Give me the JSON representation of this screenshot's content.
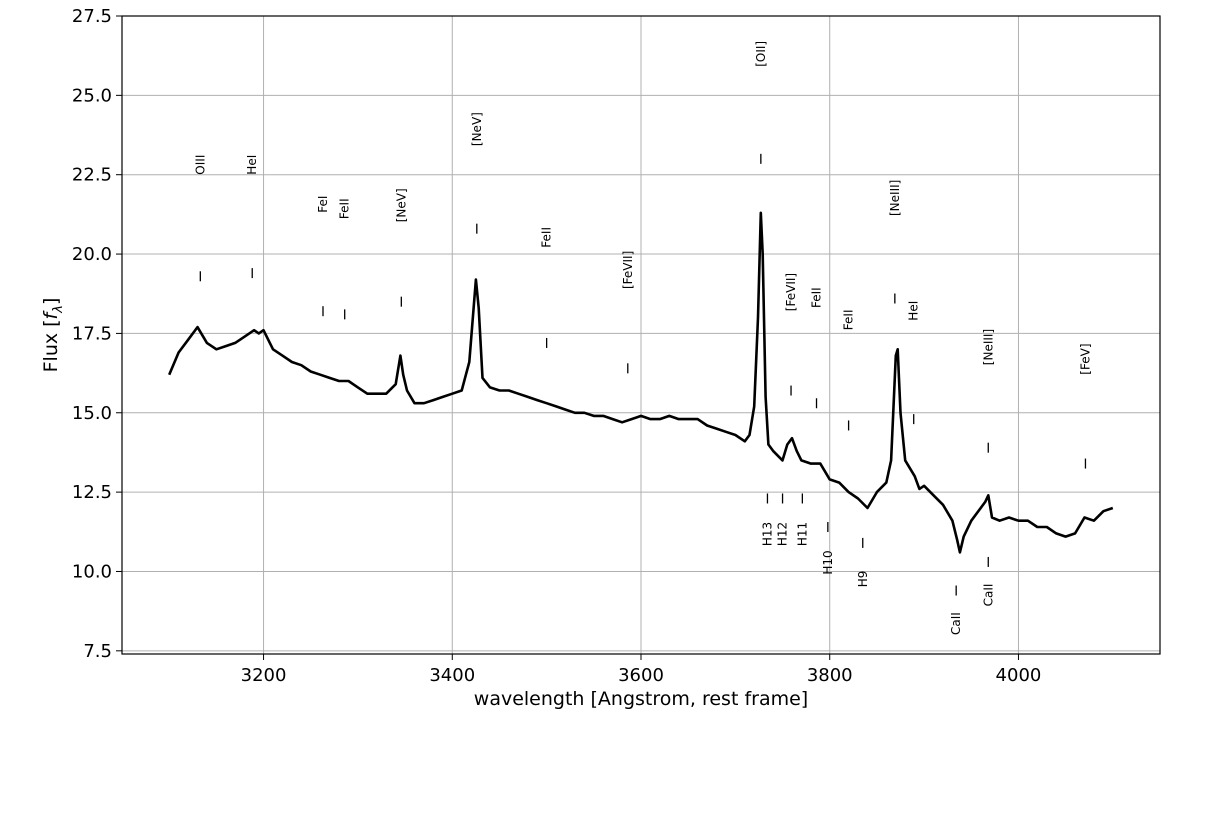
{
  "chart_data": {
    "type": "line",
    "xlabel": "wavelength [Angstrom, rest frame]",
    "ylabel": "Flux [",
    "ylabel_symbol": "f",
    "ylabel_sub": "λ",
    "ylabel_close": "]",
    "xlim": [
      3050,
      4150
    ],
    "ylim": [
      7.4,
      27.5
    ],
    "grid": true,
    "x_ticks": [
      3200,
      3400,
      3600,
      3800,
      4000
    ],
    "x_tick_labels": [
      "3200",
      "3400",
      "3600",
      "3800",
      "4000"
    ],
    "y_ticks": [
      7.5,
      10.0,
      12.5,
      15.0,
      17.5,
      20.0,
      22.5,
      25.0,
      27.5
    ],
    "y_tick_labels": [
      "7.5",
      "10.0",
      "12.5",
      "15.0",
      "17.5",
      "20.0",
      "22.5",
      "25.0",
      "27.5"
    ],
    "series": [
      {
        "color": "#000000",
        "x": [
          3100,
          3110,
          3120,
          3130,
          3140,
          3150,
          3160,
          3170,
          3180,
          3190,
          3195,
          3200,
          3210,
          3220,
          3230,
          3240,
          3250,
          3260,
          3270,
          3280,
          3290,
          3300,
          3310,
          3320,
          3330,
          3340,
          3345,
          3348,
          3352,
          3360,
          3370,
          3380,
          3390,
          3400,
          3410,
          3418,
          3425,
          3428,
          3432,
          3440,
          3450,
          3460,
          3470,
          3480,
          3490,
          3500,
          3510,
          3520,
          3530,
          3540,
          3550,
          3560,
          3570,
          3580,
          3590,
          3600,
          3610,
          3620,
          3630,
          3640,
          3650,
          3660,
          3670,
          3680,
          3690,
          3700,
          3710,
          3715,
          3720,
          3724,
          3727,
          3729,
          3732,
          3735,
          3740,
          3750,
          3755,
          3760,
          3765,
          3770,
          3780,
          3790,
          3800,
          3810,
          3820,
          3830,
          3840,
          3850,
          3860,
          3865,
          3870,
          3872,
          3875,
          3880,
          3890,
          3895,
          3900,
          3910,
          3920,
          3930,
          3935,
          3938,
          3942,
          3950,
          3960,
          3965,
          3968,
          3972,
          3980,
          3990,
          4000,
          4010,
          4020,
          4030,
          4040,
          4050,
          4060,
          4070,
          4080,
          4090,
          4100
        ],
        "y": [
          16.2,
          16.9,
          17.3,
          17.7,
          17.2,
          17.0,
          17.1,
          17.2,
          17.4,
          17.6,
          17.5,
          17.6,
          17.0,
          16.8,
          16.6,
          16.5,
          16.3,
          16.2,
          16.1,
          16.0,
          16.0,
          15.8,
          15.6,
          15.6,
          15.6,
          15.9,
          16.8,
          16.2,
          15.7,
          15.3,
          15.3,
          15.4,
          15.5,
          15.6,
          15.7,
          16.6,
          19.2,
          18.3,
          16.1,
          15.8,
          15.7,
          15.7,
          15.6,
          15.5,
          15.4,
          15.3,
          15.2,
          15.1,
          15.0,
          15.0,
          14.9,
          14.9,
          14.8,
          14.7,
          14.8,
          14.9,
          14.8,
          14.8,
          14.9,
          14.8,
          14.8,
          14.8,
          14.6,
          14.5,
          14.4,
          14.3,
          14.1,
          14.3,
          15.2,
          18.0,
          21.3,
          20.0,
          15.5,
          14.0,
          13.8,
          13.5,
          14.0,
          14.2,
          13.8,
          13.5,
          13.4,
          13.4,
          12.9,
          12.8,
          12.5,
          12.3,
          12.0,
          12.5,
          12.8,
          13.5,
          16.8,
          17.0,
          15.0,
          13.5,
          13.0,
          12.6,
          12.7,
          12.4,
          12.1,
          11.6,
          11.0,
          10.6,
          11.1,
          11.6,
          12.0,
          12.2,
          12.4,
          11.7,
          11.6,
          11.7,
          11.6,
          11.6,
          11.4,
          11.4,
          11.2,
          11.1,
          11.2,
          11.7,
          11.6,
          11.9,
          12.0
        ]
      }
    ],
    "annotations": [
      {
        "label": "OIII",
        "x": 3133,
        "y": 22.5,
        "tick_y": 19.3
      },
      {
        "label": "HeI",
        "x": 3188,
        "y": 22.5,
        "tick_y": 19.4
      },
      {
        "label": "FeI",
        "x": 3263,
        "y": 21.3,
        "tick_y": 18.2
      },
      {
        "label": "FeII",
        "x": 3286,
        "y": 21.1,
        "tick_y": 18.1
      },
      {
        "label": "[NeV]",
        "x": 3346,
        "y": 21.0,
        "tick_y": 18.5
      },
      {
        "label": "[NeV]",
        "x": 3426,
        "y": 23.4,
        "tick_y": 20.8
      },
      {
        "label": "FeII",
        "x": 3500,
        "y": 20.2,
        "tick_y": 17.2
      },
      {
        "label": "[FeVII]",
        "x": 3586,
        "y": 18.9,
        "tick_y": 16.4
      },
      {
        "label": "[OII]",
        "x": 3727,
        "y": 25.9,
        "tick_y": 23.0
      },
      {
        "label": "[FeVII]",
        "x": 3759,
        "y": 18.2,
        "tick_y": 15.7
      },
      {
        "label": "FeII",
        "x": 3786,
        "y": 18.3,
        "tick_y": 15.3
      },
      {
        "label": "FeII",
        "x": 3820,
        "y": 17.6,
        "tick_y": 14.6
      },
      {
        "label": "[NeIII]",
        "x": 3869,
        "y": 21.2,
        "tick_y": 18.6
      },
      {
        "label": "HeI",
        "x": 3889,
        "y": 17.9,
        "tick_y": 14.8
      },
      {
        "label": "[NeIII]",
        "x": 3968,
        "y": 16.5,
        "tick_y": 13.9
      },
      {
        "label": "[FeV]",
        "x": 4071,
        "y": 16.2,
        "tick_y": 13.4
      },
      {
        "label": "H13",
        "x": 3734,
        "y": 10.8,
        "tick_y": 12.3
      },
      {
        "label": "H12",
        "x": 3750,
        "y": 10.8,
        "tick_y": 12.3
      },
      {
        "label": "H11",
        "x": 3771,
        "y": 10.8,
        "tick_y": 12.3
      },
      {
        "label": "H10",
        "x": 3798,
        "y": 9.9,
        "tick_y": 11.4
      },
      {
        "label": "H9",
        "x": 3835,
        "y": 9.5,
        "tick_y": 10.9
      },
      {
        "label": "CaII",
        "x": 3934,
        "y": 8.0,
        "tick_y": 9.4
      },
      {
        "label": "CaII",
        "x": 3968,
        "y": 8.9,
        "tick_y": 10.3
      }
    ]
  }
}
